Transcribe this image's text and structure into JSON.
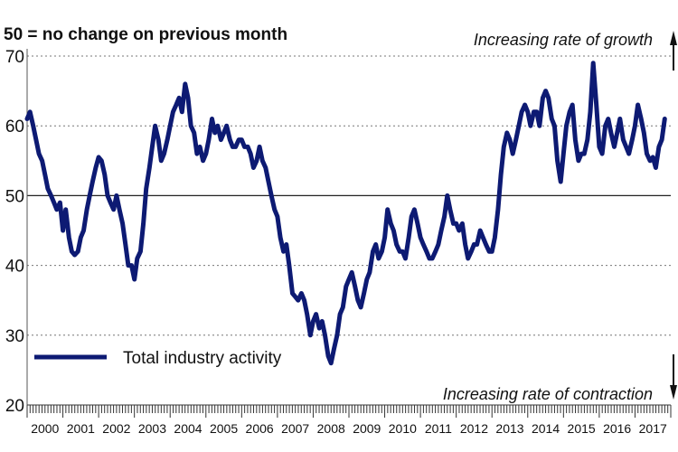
{
  "chart_data": {
    "type": "line",
    "title": "50 = no change on previous month",
    "annotations": {
      "top": "Increasing rate of growth",
      "bottom": "Increasing rate of contraction"
    },
    "ylim": [
      20,
      70
    ],
    "yticks": [
      20,
      30,
      40,
      50,
      60,
      70
    ],
    "reference_line": 50,
    "x_tick_labels": [
      "2000",
      "2001",
      "2002",
      "2003",
      "2004",
      "2005",
      "2006",
      "2007",
      "2008",
      "2009",
      "2010",
      "2011",
      "2012",
      "2013",
      "2014",
      "2015",
      "2016",
      "2017"
    ],
    "grid": "horizontal dashed",
    "legend": {
      "position": "bottom-left"
    },
    "series": [
      {
        "name": "Total industry activity",
        "color": "#0d1a73",
        "points": [
          [
            2000.0,
            61
          ],
          [
            2000.08,
            62
          ],
          [
            2000.17,
            60
          ],
          [
            2000.25,
            58
          ],
          [
            2000.33,
            56
          ],
          [
            2000.42,
            55
          ],
          [
            2000.5,
            53
          ],
          [
            2000.58,
            51
          ],
          [
            2000.67,
            50
          ],
          [
            2000.75,
            49
          ],
          [
            2000.83,
            48
          ],
          [
            2000.92,
            49
          ],
          [
            2001.0,
            45
          ],
          [
            2001.08,
            48
          ],
          [
            2001.17,
            44
          ],
          [
            2001.25,
            42
          ],
          [
            2001.33,
            41.5
          ],
          [
            2001.42,
            42
          ],
          [
            2001.5,
            44
          ],
          [
            2001.58,
            45
          ],
          [
            2001.67,
            48
          ],
          [
            2001.75,
            50
          ],
          [
            2001.83,
            52
          ],
          [
            2001.92,
            54
          ],
          [
            2002.0,
            55.5
          ],
          [
            2002.08,
            55
          ],
          [
            2002.17,
            53
          ],
          [
            2002.25,
            50
          ],
          [
            2002.33,
            49
          ],
          [
            2002.42,
            48
          ],
          [
            2002.5,
            50
          ],
          [
            2002.58,
            48
          ],
          [
            2002.67,
            46
          ],
          [
            2002.75,
            43
          ],
          [
            2002.83,
            40
          ],
          [
            2002.92,
            40
          ],
          [
            2003.0,
            38
          ],
          [
            2003.08,
            41
          ],
          [
            2003.17,
            42
          ],
          [
            2003.25,
            46
          ],
          [
            2003.33,
            51
          ],
          [
            2003.42,
            54
          ],
          [
            2003.5,
            57
          ],
          [
            2003.58,
            60
          ],
          [
            2003.67,
            58
          ],
          [
            2003.75,
            55
          ],
          [
            2003.83,
            56
          ],
          [
            2003.92,
            58
          ],
          [
            2004.0,
            60
          ],
          [
            2004.08,
            62
          ],
          [
            2004.17,
            63
          ],
          [
            2004.25,
            64
          ],
          [
            2004.33,
            62
          ],
          [
            2004.42,
            66
          ],
          [
            2004.5,
            64
          ],
          [
            2004.58,
            60
          ],
          [
            2004.67,
            59
          ],
          [
            2004.75,
            56
          ],
          [
            2004.83,
            57
          ],
          [
            2004.92,
            55
          ],
          [
            2005.0,
            56
          ],
          [
            2005.08,
            58
          ],
          [
            2005.17,
            61
          ],
          [
            2005.25,
            59
          ],
          [
            2005.33,
            60
          ],
          [
            2005.42,
            58
          ],
          [
            2005.5,
            59
          ],
          [
            2005.58,
            60
          ],
          [
            2005.67,
            58
          ],
          [
            2005.75,
            57
          ],
          [
            2005.83,
            57
          ],
          [
            2005.92,
            58
          ],
          [
            2006.0,
            58
          ],
          [
            2006.08,
            57
          ],
          [
            2006.17,
            57
          ],
          [
            2006.25,
            56
          ],
          [
            2006.33,
            54
          ],
          [
            2006.42,
            55
          ],
          [
            2006.5,
            57
          ],
          [
            2006.58,
            55
          ],
          [
            2006.67,
            54
          ],
          [
            2006.75,
            52
          ],
          [
            2006.83,
            50
          ],
          [
            2006.92,
            48
          ],
          [
            2007.0,
            47
          ],
          [
            2007.08,
            44
          ],
          [
            2007.17,
            42
          ],
          [
            2007.25,
            43
          ],
          [
            2007.33,
            40
          ],
          [
            2007.42,
            36
          ],
          [
            2007.5,
            35.5
          ],
          [
            2007.58,
            35
          ],
          [
            2007.67,
            36
          ],
          [
            2007.75,
            35
          ],
          [
            2007.83,
            33
          ],
          [
            2007.92,
            30
          ],
          [
            2008.0,
            32
          ],
          [
            2008.08,
            33
          ],
          [
            2008.17,
            31
          ],
          [
            2008.25,
            32
          ],
          [
            2008.33,
            30
          ],
          [
            2008.42,
            27
          ],
          [
            2008.5,
            26
          ],
          [
            2008.58,
            28
          ],
          [
            2008.67,
            30
          ],
          [
            2008.75,
            33
          ],
          [
            2008.83,
            34
          ],
          [
            2008.92,
            37
          ],
          [
            2009.0,
            38
          ],
          [
            2009.08,
            39
          ],
          [
            2009.17,
            37
          ],
          [
            2009.25,
            35
          ],
          [
            2009.33,
            34
          ],
          [
            2009.42,
            36
          ],
          [
            2009.5,
            38
          ],
          [
            2009.58,
            39
          ],
          [
            2009.67,
            42
          ],
          [
            2009.75,
            43
          ],
          [
            2009.83,
            41
          ],
          [
            2009.92,
            42
          ],
          [
            2010.0,
            44
          ],
          [
            2010.08,
            48
          ],
          [
            2010.17,
            46
          ],
          [
            2010.25,
            45
          ],
          [
            2010.33,
            43
          ],
          [
            2010.42,
            42
          ],
          [
            2010.5,
            42
          ],
          [
            2010.58,
            41
          ],
          [
            2010.67,
            44
          ],
          [
            2010.75,
            47
          ],
          [
            2010.83,
            48
          ],
          [
            2010.92,
            46
          ],
          [
            2011.0,
            44
          ],
          [
            2011.08,
            43
          ],
          [
            2011.17,
            42
          ],
          [
            2011.25,
            41
          ],
          [
            2011.33,
            41
          ],
          [
            2011.42,
            42
          ],
          [
            2011.5,
            43
          ],
          [
            2011.58,
            45
          ],
          [
            2011.67,
            47
          ],
          [
            2011.75,
            50
          ],
          [
            2011.83,
            48
          ],
          [
            2011.92,
            46
          ],
          [
            2012.0,
            46
          ],
          [
            2012.08,
            45
          ],
          [
            2012.17,
            46
          ],
          [
            2012.25,
            43
          ],
          [
            2012.33,
            41
          ],
          [
            2012.42,
            42
          ],
          [
            2012.5,
            43
          ],
          [
            2012.58,
            43
          ],
          [
            2012.67,
            45
          ],
          [
            2012.75,
            44
          ],
          [
            2012.83,
            43
          ],
          [
            2012.92,
            42
          ],
          [
            2013.0,
            42
          ],
          [
            2013.08,
            44
          ],
          [
            2013.17,
            48
          ],
          [
            2013.25,
            53
          ],
          [
            2013.33,
            57
          ],
          [
            2013.42,
            59
          ],
          [
            2013.5,
            58
          ],
          [
            2013.58,
            56
          ],
          [
            2013.67,
            58
          ],
          [
            2013.75,
            60
          ],
          [
            2013.83,
            62
          ],
          [
            2013.92,
            63
          ],
          [
            2014.0,
            62
          ],
          [
            2014.08,
            60
          ],
          [
            2014.17,
            62
          ],
          [
            2014.25,
            62
          ],
          [
            2014.33,
            60
          ],
          [
            2014.42,
            64
          ],
          [
            2014.5,
            65
          ],
          [
            2014.58,
            64
          ],
          [
            2014.67,
            61
          ],
          [
            2014.75,
            60
          ],
          [
            2014.83,
            55
          ],
          [
            2014.92,
            52
          ],
          [
            2015.0,
            56
          ],
          [
            2015.08,
            60
          ],
          [
            2015.17,
            62
          ],
          [
            2015.25,
            63
          ],
          [
            2015.33,
            58
          ],
          [
            2015.42,
            55
          ],
          [
            2015.5,
            56
          ],
          [
            2015.58,
            56
          ],
          [
            2015.67,
            58
          ],
          [
            2015.75,
            62
          ],
          [
            2015.83,
            69
          ],
          [
            2015.92,
            63
          ],
          [
            2016.0,
            57
          ],
          [
            2016.08,
            56
          ],
          [
            2016.17,
            60
          ],
          [
            2016.25,
            61
          ],
          [
            2016.33,
            59
          ],
          [
            2016.42,
            57
          ],
          [
            2016.5,
            59
          ],
          [
            2016.58,
            61
          ],
          [
            2016.67,
            58
          ],
          [
            2016.75,
            57
          ],
          [
            2016.83,
            56
          ],
          [
            2016.92,
            58
          ],
          [
            2017.0,
            60
          ],
          [
            2017.08,
            63
          ],
          [
            2017.17,
            61
          ],
          [
            2017.25,
            59
          ],
          [
            2017.33,
            56
          ],
          [
            2017.42,
            55
          ],
          [
            2017.5,
            55.5
          ],
          [
            2017.58,
            54
          ],
          [
            2017.67,
            57
          ],
          [
            2017.75,
            58
          ],
          [
            2017.83,
            61
          ]
        ]
      }
    ]
  }
}
